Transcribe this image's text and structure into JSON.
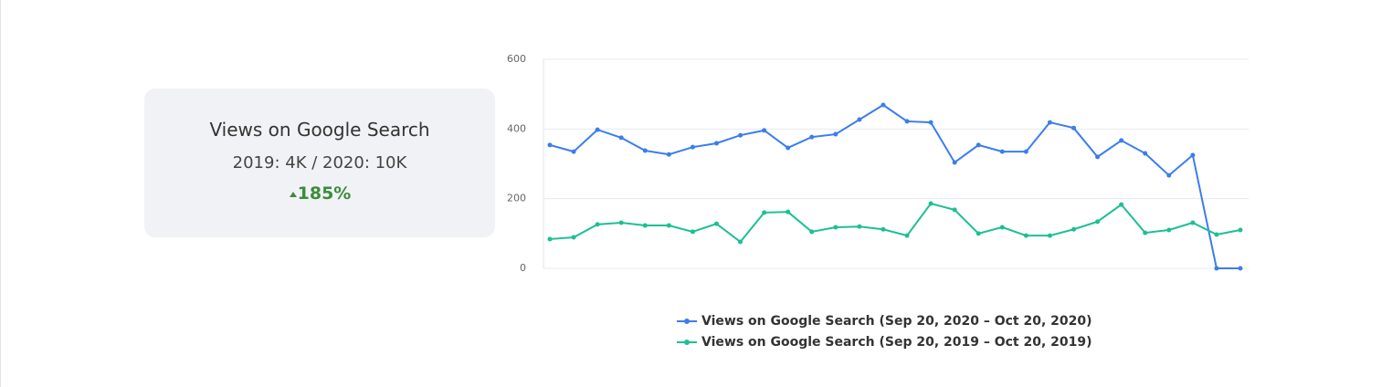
{
  "card": {
    "title": "Views on Google Search",
    "subtitle": "2019: 4K / 2020: 10K",
    "change": "185%"
  },
  "chart_data": {
    "type": "line",
    "categories": [
      null,
      null,
      null,
      null,
      null,
      null,
      null,
      null,
      null,
      null,
      null,
      null,
      null,
      null,
      null,
      null,
      null,
      null,
      null,
      null,
      null,
      null,
      null,
      null,
      null,
      null,
      null,
      null,
      null,
      null
    ],
    "series": [
      {
        "name": "Views on Google Search (Sep 20, 2020 – Oct 20, 2020)",
        "color": "#3b7ded",
        "values": [
          354,
          335,
          398,
          375,
          338,
          327,
          348,
          359,
          382,
          396,
          346,
          377,
          385,
          427,
          469,
          422,
          419,
          304,
          354,
          335,
          335,
          419,
          403,
          320,
          367,
          330,
          267,
          325,
          0,
          0
        ]
      },
      {
        "name": "Views on Google Search (Sep 20, 2019 – Oct 20, 2019)",
        "color": "#1dbf95",
        "values": [
          84,
          89,
          126,
          131,
          123,
          123,
          105,
          128,
          76,
          160,
          162,
          105,
          118,
          120,
          112,
          94,
          186,
          168,
          100,
          118,
          94,
          94,
          112,
          134,
          183,
          102,
          110,
          131,
          97,
          110
        ]
      }
    ],
    "ylim": [
      0,
      600
    ],
    "yticks": [
      0,
      200,
      400,
      600
    ],
    "grid": true
  }
}
